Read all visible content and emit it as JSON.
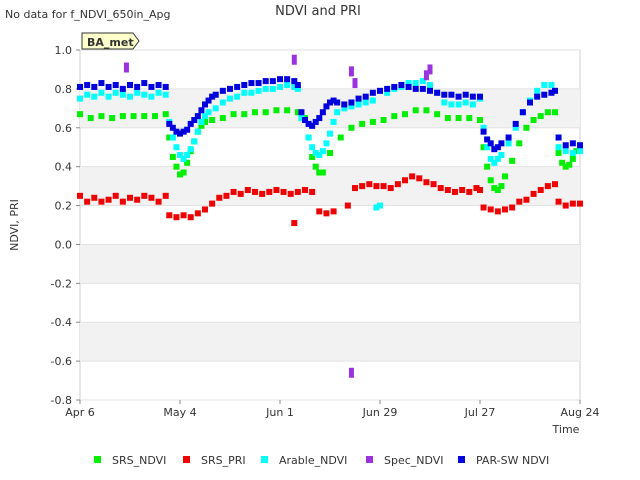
{
  "header": {
    "nodata_text": "No data for f_NDVI_650in_Apg",
    "badge_label": "BA_met"
  },
  "chart_data": {
    "type": "scatter",
    "title": "NDVI and PRI",
    "xlabel": "Time",
    "ylabel": "NDVI, PRI",
    "x_unit": "day since Apr 6",
    "xlim": [
      0,
      140
    ],
    "ylim": [
      -0.8,
      1.0
    ],
    "grid": true,
    "legend_position": "bottom",
    "x_ticks": [
      {
        "day": 0,
        "label": "Apr 6"
      },
      {
        "day": 28,
        "label": "May 4"
      },
      {
        "day": 56,
        "label": "Jun 1"
      },
      {
        "day": 84,
        "label": "Jun 29"
      },
      {
        "day": 112,
        "label": "Jul 27"
      },
      {
        "day": 140,
        "label": "Aug 24"
      }
    ],
    "y_ticks": [
      {
        "value": 1.0,
        "label": "1.0"
      },
      {
        "value": 0.8,
        "label": "0.8"
      },
      {
        "value": 0.6,
        "label": "0.6"
      },
      {
        "value": 0.4,
        "label": "0.4"
      },
      {
        "value": 0.2,
        "label": "0.2"
      },
      {
        "value": 0.0,
        "label": "0.0"
      },
      {
        "value": -0.2,
        "label": "-0.2"
      },
      {
        "value": -0.4,
        "label": "-0.4"
      },
      {
        "value": -0.6,
        "label": "-0.6"
      },
      {
        "value": -0.8,
        "label": "-0.8"
      }
    ],
    "series": [
      {
        "name": "SRS_NDVI",
        "color": "#00ee00",
        "x": [
          0,
          3,
          6,
          9,
          12,
          15,
          18,
          21,
          24,
          25,
          26,
          27,
          28,
          29,
          30,
          31,
          32,
          33,
          34,
          35,
          37,
          40,
          43,
          46,
          49,
          52,
          55,
          58,
          61,
          63,
          64,
          65,
          66,
          67,
          68,
          70,
          73,
          76,
          79,
          82,
          85,
          88,
          91,
          94,
          97,
          100,
          103,
          106,
          109,
          112,
          113,
          114,
          115,
          116,
          117,
          118,
          119,
          121,
          123,
          125,
          127,
          129,
          131,
          133,
          134,
          135,
          136,
          137,
          138,
          139,
          140
        ],
        "y": [
          0.67,
          0.65,
          0.66,
          0.65,
          0.66,
          0.66,
          0.66,
          0.66,
          0.67,
          0.55,
          0.45,
          0.4,
          0.36,
          0.37,
          0.42,
          0.48,
          0.53,
          0.58,
          0.61,
          0.63,
          0.64,
          0.65,
          0.67,
          0.67,
          0.68,
          0.68,
          0.69,
          0.69,
          0.68,
          0.65,
          0.55,
          0.45,
          0.4,
          0.37,
          0.37,
          0.47,
          0.55,
          0.6,
          0.62,
          0.63,
          0.64,
          0.66,
          0.67,
          0.69,
          0.69,
          0.67,
          0.65,
          0.65,
          0.65,
          0.64,
          0.5,
          0.4,
          0.33,
          0.29,
          0.28,
          0.3,
          0.35,
          0.43,
          0.52,
          0.6,
          0.64,
          0.66,
          0.68,
          0.68,
          0.47,
          0.42,
          0.4,
          0.41,
          0.44,
          0.48,
          0.51
        ]
      },
      {
        "name": "SRS_PRI",
        "color": "#ee0000",
        "x": [
          0,
          2,
          4,
          6,
          8,
          10,
          12,
          14,
          16,
          18,
          20,
          22,
          24,
          25,
          27,
          29,
          31,
          33,
          35,
          37,
          39,
          41,
          43,
          45,
          47,
          49,
          51,
          53,
          55,
          57,
          59,
          60,
          61,
          63,
          65,
          67,
          69,
          71,
          75,
          77,
          79,
          81,
          83,
          85,
          87,
          89,
          91,
          93,
          95,
          97,
          99,
          101,
          103,
          105,
          107,
          109,
          111,
          112,
          113,
          115,
          117,
          119,
          121,
          123,
          125,
          127,
          129,
          131,
          133,
          134,
          136,
          138,
          140
        ],
        "y": [
          0.25,
          0.22,
          0.24,
          0.22,
          0.23,
          0.25,
          0.22,
          0.24,
          0.23,
          0.25,
          0.24,
          0.22,
          0.25,
          0.15,
          0.14,
          0.15,
          0.14,
          0.16,
          0.18,
          0.21,
          0.24,
          0.25,
          0.27,
          0.26,
          0.28,
          0.27,
          0.26,
          0.27,
          0.28,
          0.27,
          0.26,
          0.11,
          0.27,
          0.28,
          0.27,
          0.17,
          0.16,
          0.17,
          0.2,
          0.29,
          0.3,
          0.31,
          0.3,
          0.3,
          0.29,
          0.31,
          0.33,
          0.35,
          0.34,
          0.32,
          0.31,
          0.29,
          0.28,
          0.27,
          0.28,
          0.27,
          0.29,
          0.28,
          0.19,
          0.18,
          0.17,
          0.18,
          0.19,
          0.22,
          0.23,
          0.26,
          0.28,
          0.3,
          0.31,
          0.22,
          0.2,
          0.21,
          0.21
        ]
      },
      {
        "name": "Arable_NDVI",
        "color": "#00ffff",
        "x": [
          0,
          2,
          4,
          6,
          8,
          10,
          12,
          14,
          16,
          18,
          20,
          22,
          24,
          25,
          26,
          27,
          28,
          29,
          30,
          31,
          32,
          33,
          34,
          35,
          36,
          38,
          40,
          42,
          44,
          46,
          48,
          50,
          52,
          54,
          56,
          58,
          60,
          61,
          62,
          64,
          65,
          66,
          67,
          68,
          69,
          70,
          71,
          72,
          74,
          76,
          78,
          80,
          82,
          83,
          84,
          86,
          88,
          90,
          92,
          94,
          96,
          98,
          100,
          102,
          104,
          106,
          108,
          110,
          112,
          113,
          114,
          115,
          116,
          117,
          118,
          120,
          122,
          124,
          126,
          128,
          130,
          132,
          134,
          136,
          138,
          140
        ],
        "y": [
          0.75,
          0.77,
          0.76,
          0.78,
          0.76,
          0.78,
          0.77,
          0.76,
          0.78,
          0.77,
          0.76,
          0.78,
          0.77,
          0.63,
          0.55,
          0.5,
          0.46,
          0.44,
          0.46,
          0.49,
          0.53,
          0.58,
          0.63,
          0.66,
          0.68,
          0.7,
          0.73,
          0.75,
          0.76,
          0.78,
          0.78,
          0.79,
          0.8,
          0.8,
          0.81,
          0.82,
          0.81,
          0.8,
          0.65,
          0.55,
          0.5,
          0.47,
          0.46,
          0.48,
          0.52,
          0.57,
          0.63,
          0.68,
          0.7,
          0.71,
          0.72,
          0.73,
          0.74,
          0.19,
          0.2,
          0.78,
          0.8,
          0.81,
          0.83,
          0.83,
          0.84,
          0.82,
          0.78,
          0.73,
          0.72,
          0.72,
          0.73,
          0.72,
          0.75,
          0.6,
          0.5,
          0.44,
          0.42,
          0.44,
          0.46,
          0.52,
          0.6,
          0.68,
          0.74,
          0.79,
          0.82,
          0.82,
          0.5,
          0.48,
          0.47,
          0.48
        ]
      },
      {
        "name": "Spec_NDVI",
        "color": "#9933dd",
        "x": [
          13,
          60,
          76,
          77,
          76,
          97,
          98
        ],
        "y": [
          0.91,
          0.95,
          0.89,
          0.83,
          -0.66,
          0.87,
          0.9
        ]
      },
      {
        "name": "PAR-SW NDVI",
        "color": "#0000dd",
        "x": [
          0,
          2,
          4,
          6,
          8,
          10,
          12,
          14,
          16,
          18,
          20,
          22,
          24,
          25,
          26,
          27,
          28,
          29,
          30,
          31,
          32,
          33,
          34,
          35,
          36,
          37,
          38,
          40,
          42,
          44,
          46,
          48,
          50,
          52,
          54,
          56,
          58,
          60,
          61,
          62,
          63,
          64,
          65,
          66,
          67,
          68,
          69,
          70,
          71,
          72,
          74,
          76,
          78,
          80,
          82,
          84,
          86,
          88,
          90,
          92,
          94,
          96,
          98,
          100,
          102,
          104,
          106,
          108,
          110,
          112,
          113,
          114,
          115,
          116,
          117,
          118,
          120,
          122,
          124,
          126,
          128,
          130,
          132,
          133,
          134,
          136,
          138,
          140
        ],
        "y": [
          0.81,
          0.82,
          0.81,
          0.83,
          0.81,
          0.82,
          0.8,
          0.82,
          0.81,
          0.83,
          0.81,
          0.82,
          0.81,
          0.62,
          0.6,
          0.58,
          0.57,
          0.58,
          0.59,
          0.62,
          0.64,
          0.66,
          0.69,
          0.72,
          0.74,
          0.76,
          0.77,
          0.79,
          0.8,
          0.81,
          0.82,
          0.83,
          0.83,
          0.84,
          0.84,
          0.85,
          0.85,
          0.84,
          0.82,
          0.68,
          0.64,
          0.62,
          0.61,
          0.63,
          0.65,
          0.68,
          0.71,
          0.73,
          0.74,
          0.73,
          0.72,
          0.73,
          0.75,
          0.76,
          0.78,
          0.79,
          0.8,
          0.81,
          0.82,
          0.81,
          0.8,
          0.8,
          0.79,
          0.78,
          0.77,
          0.77,
          0.76,
          0.77,
          0.76,
          0.76,
          0.58,
          0.54,
          0.52,
          0.49,
          0.5,
          0.52,
          0.55,
          0.62,
          0.68,
          0.73,
          0.76,
          0.77,
          0.78,
          0.79,
          0.55,
          0.51,
          0.52,
          0.51
        ]
      }
    ]
  }
}
